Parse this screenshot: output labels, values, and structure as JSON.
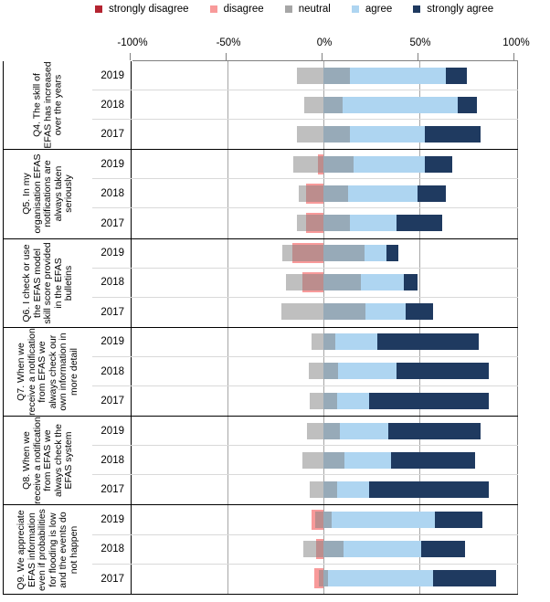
{
  "legend": {
    "items": [
      {
        "key": "strongly_disagree",
        "label": "strongly disagree"
      },
      {
        "key": "disagree",
        "label": "disagree"
      },
      {
        "key": "neutral",
        "label": "neutral"
      },
      {
        "key": "agree",
        "label": "agree"
      },
      {
        "key": "strongly_agree",
        "label": "strongly agree"
      }
    ]
  },
  "colors": {
    "strongly_disagree": "#b42431",
    "disagree": "#f89a9a",
    "neutral": "#a6a6a6",
    "neutral_overlay": "rgba(128,128,128,0.5)",
    "agree": "#aed5f1",
    "strongly_agree": "#1f3a60"
  },
  "axis": {
    "tick_labels": [
      "-100%",
      "-50%",
      "0%",
      "50%",
      "100%"
    ],
    "tick_values": [
      -100,
      -50,
      0,
      50,
      100
    ]
  },
  "chart_data": {
    "type": "bar",
    "subtype": "diverging-stacked-likert",
    "unit": "percent of respondents",
    "xlim": [
      -100,
      100
    ],
    "legend_position": "top",
    "grid": "vertical",
    "layout_note": "neutral bar centered on 0%, agree/strongly agree stack rightward from 0%, disagree stacks leftward from 0%; neutral is translucent and overlaps adjacent bars",
    "series_order": [
      "strongly_disagree",
      "disagree",
      "neutral",
      "agree",
      "strongly_agree"
    ],
    "questions": [
      {
        "id": "Q4",
        "label": "Q4. The skill of EFAS has increased over the years",
        "rows": [
          {
            "year": "2019",
            "strongly_disagree": 0,
            "disagree": 0,
            "neutral": 28,
            "agree": 64,
            "strongly_agree": 11
          },
          {
            "year": "2018",
            "strongly_disagree": 0,
            "disagree": 0,
            "neutral": 20,
            "agree": 70,
            "strongly_agree": 10
          },
          {
            "year": "2017",
            "strongly_disagree": 0,
            "disagree": 0,
            "neutral": 28,
            "agree": 53,
            "strongly_agree": 29
          }
        ]
      },
      {
        "id": "Q5",
        "label": "Q5. In my organisation EFAS notifications are always taken seriously",
        "rows": [
          {
            "year": "2019",
            "strongly_disagree": 0,
            "disagree": 3,
            "neutral": 31,
            "agree": 53,
            "strongly_agree": 14
          },
          {
            "year": "2018",
            "strongly_disagree": 0,
            "disagree": 9,
            "neutral": 26,
            "agree": 49,
            "strongly_agree": 15
          },
          {
            "year": "2017",
            "strongly_disagree": 0,
            "disagree": 9,
            "neutral": 28,
            "agree": 38,
            "strongly_agree": 24
          }
        ]
      },
      {
        "id": "Q6",
        "label": "Q6. I check or use the EFAS model skill score provided in the EFAS bulletins",
        "rows": [
          {
            "year": "2019",
            "strongly_disagree": 0,
            "disagree": 16,
            "neutral": 43,
            "agree": 33,
            "strongly_agree": 6
          },
          {
            "year": "2018",
            "strongly_disagree": 0,
            "disagree": 11,
            "neutral": 39,
            "agree": 42,
            "strongly_agree": 7
          },
          {
            "year": "2017",
            "strongly_disagree": 0,
            "disagree": 0,
            "neutral": 44,
            "agree": 43,
            "strongly_agree": 14
          }
        ]
      },
      {
        "id": "Q7",
        "label": "Q7. When we receive a notification from EFAS we always check our own information in more detail",
        "rows": [
          {
            "year": "2019",
            "strongly_disagree": 0,
            "disagree": 0,
            "neutral": 12,
            "agree": 28,
            "strongly_agree": 53
          },
          {
            "year": "2018",
            "strongly_disagree": 0,
            "disagree": 0,
            "neutral": 15,
            "agree": 38,
            "strongly_agree": 48
          },
          {
            "year": "2017",
            "strongly_disagree": 0,
            "disagree": 0,
            "neutral": 14,
            "agree": 24,
            "strongly_agree": 62
          }
        ]
      },
      {
        "id": "Q8",
        "label": "Q8. When we receive a notification from EFAS we always check the EFAS system",
        "rows": [
          {
            "year": "2019",
            "strongly_disagree": 0,
            "disagree": 0,
            "neutral": 17,
            "agree": 34,
            "strongly_agree": 48
          },
          {
            "year": "2018",
            "strongly_disagree": 0,
            "disagree": 0,
            "neutral": 22,
            "agree": 35,
            "strongly_agree": 44
          },
          {
            "year": "2017",
            "strongly_disagree": 0,
            "disagree": 0,
            "neutral": 14,
            "agree": 24,
            "strongly_agree": 62
          }
        ]
      },
      {
        "id": "Q9",
        "label": "Q9. We appreciate EFAS information even if probabilities for flooding is low and the events do not happen",
        "rows": [
          {
            "year": "2019",
            "strongly_disagree": 0,
            "disagree": 6,
            "neutral": 9,
            "agree": 58,
            "strongly_agree": 25
          },
          {
            "year": "2018",
            "strongly_disagree": 0,
            "disagree": 4,
            "neutral": 21,
            "agree": 51,
            "strongly_agree": 23
          },
          {
            "year": "2017",
            "strongly_disagree": 0,
            "disagree": 5,
            "neutral": 5,
            "agree": 57,
            "strongly_agree": 33
          }
        ]
      }
    ]
  }
}
